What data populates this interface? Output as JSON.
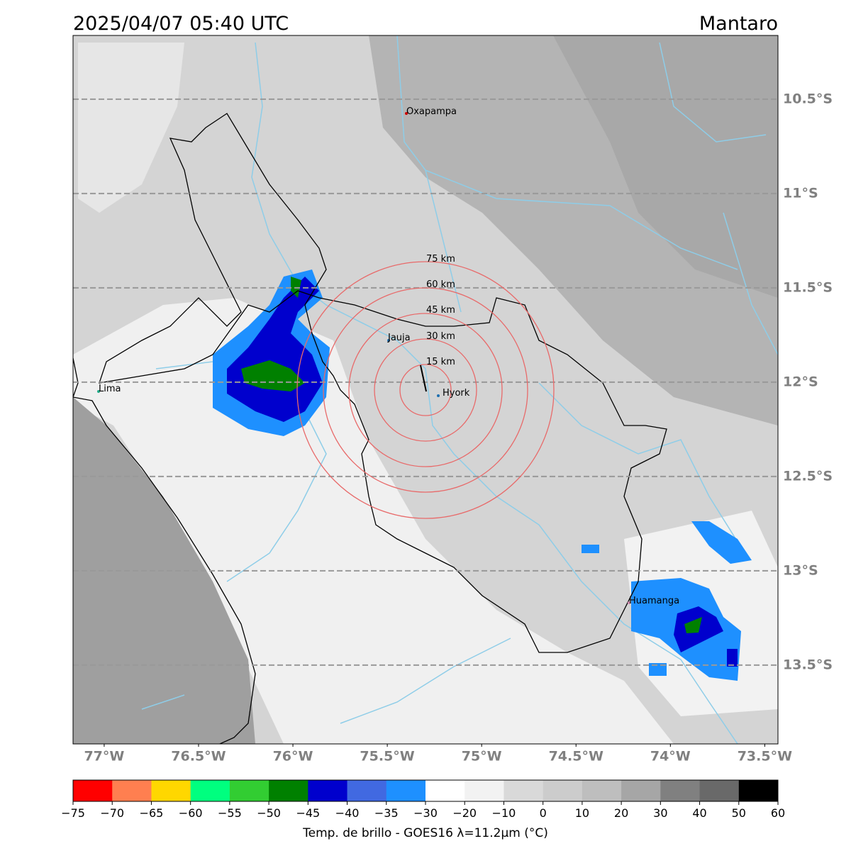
{
  "header": {
    "title": "2025/04/07 05:40 UTC",
    "region": "Mantaro"
  },
  "map": {
    "lat_ticks": [
      {
        "value": -10.5,
        "label": "10.5°S"
      },
      {
        "value": -11,
        "label": "11°S"
      },
      {
        "value": -11.5,
        "label": "11.5°S"
      },
      {
        "value": -12,
        "label": "12°S"
      },
      {
        "value": -12.5,
        "label": "12.5°S"
      },
      {
        "value": -13,
        "label": "13°S"
      },
      {
        "value": -13.5,
        "label": "13.5°S"
      }
    ],
    "lon_ticks": [
      {
        "value": -77,
        "label": "77°W"
      },
      {
        "value": -76.5,
        "label": "76.5°W"
      },
      {
        "value": -76,
        "label": "76°W"
      },
      {
        "value": -75.5,
        "label": "75.5°W"
      },
      {
        "value": -75,
        "label": "75°W"
      },
      {
        "value": -74.5,
        "label": "74.5°W"
      },
      {
        "value": -74,
        "label": "74°W"
      },
      {
        "value": -73.5,
        "label": "73.5°W"
      }
    ],
    "cities": [
      "Oxapampa",
      "Jauja",
      "Hyork",
      "Lima",
      "Huamanga"
    ],
    "rings": [
      "15 km",
      "30 km",
      "45 km",
      "60 km",
      "75 km"
    ]
  },
  "colorbar": {
    "ticks": [
      {
        "value": -75,
        "label": "−75"
      },
      {
        "value": -70,
        "label": "−70"
      },
      {
        "value": -65,
        "label": "−65"
      },
      {
        "value": -60,
        "label": "−60"
      },
      {
        "value": -55,
        "label": "−55"
      },
      {
        "value": -50,
        "label": "−50"
      },
      {
        "value": -45,
        "label": "−45"
      },
      {
        "value": -40,
        "label": "−40"
      },
      {
        "value": -35,
        "label": "−35"
      },
      {
        "value": -30,
        "label": "−30"
      },
      {
        "value": -20,
        "label": "−20"
      },
      {
        "value": -10,
        "label": "−10"
      },
      0,
      10,
      20,
      30,
      40,
      50,
      60
    ],
    "colors": [
      "#ff0000",
      "#ff7f50",
      "#ffd700",
      "#00ff7f",
      "#32cd32",
      "#008000",
      "#0000cd",
      "#4169e1",
      "#1e90ff",
      "#ffffff",
      "#f2f2f2",
      "#d9d9d9",
      "#cccccc",
      "#bebebe",
      "#a6a6a6",
      "#808080",
      "#696969",
      "#000000"
    ],
    "label": "Temp. de brillo - GOES16 λ=11.2μm (°C)"
  }
}
